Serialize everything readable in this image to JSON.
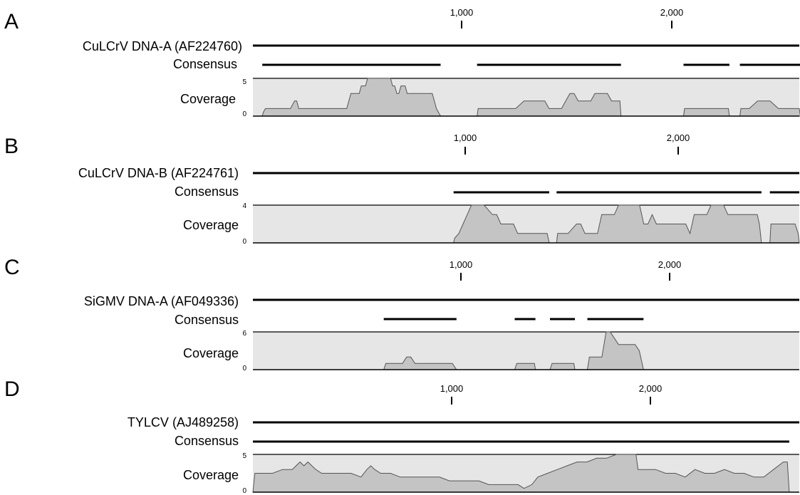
{
  "chart_data": [
    {
      "type": "area",
      "panel": "A",
      "reference": "CuLCrV DNA-A (AF224760)",
      "consensus_label": "Consensus",
      "coverage_label": "Coverage",
      "genome_length": 2620,
      "x_ticks": [
        1000,
        2000
      ],
      "x_tick_labels": [
        "1,000",
        "2,000"
      ],
      "ylim": [
        0,
        5
      ],
      "y_tick_labels": [
        "5",
        "0"
      ],
      "consensus_segments": [
        [
          45,
          900
        ],
        [
          1075,
          1765
        ],
        [
          2065,
          2285
        ],
        [
          2335,
          2625
        ]
      ],
      "coverage": [
        {
          "x": [
            45,
            50,
            60,
            70,
            80,
            90,
            100,
            110,
            120,
            130,
            140,
            150,
            160,
            170,
            180,
            190,
            200,
            210,
            220,
            230,
            240,
            250,
            260,
            270,
            280,
            290,
            300,
            310,
            320,
            330,
            340,
            350,
            360,
            370,
            380,
            390,
            400,
            410,
            420,
            430,
            440,
            450,
            460,
            470,
            480,
            490,
            500,
            510,
            520,
            530,
            540,
            550,
            560,
            570,
            580,
            590,
            600,
            610,
            620,
            630,
            640,
            650,
            660,
            670,
            680,
            690,
            700,
            710,
            720,
            730,
            740,
            750,
            760,
            770,
            780,
            790,
            800,
            810,
            820,
            830,
            840,
            850,
            860,
            870,
            880,
            890,
            900
          ],
          "y": [
            0,
            0.5,
            1,
            1,
            1,
            1,
            1,
            1,
            1,
            1,
            1,
            1,
            1,
            1,
            1,
            1.5,
            2,
            2,
            1,
            1,
            1,
            1,
            1,
            1,
            1,
            1,
            1,
            1,
            1,
            1,
            1,
            1,
            1,
            1,
            1,
            1,
            1,
            1,
            1,
            1,
            1,
            1,
            2,
            3,
            3,
            3,
            3,
            3,
            4,
            4,
            4,
            5,
            5,
            5,
            5,
            5,
            5,
            5,
            5,
            5,
            5,
            5,
            5,
            4,
            4,
            3,
            3,
            4,
            4,
            4,
            3,
            3,
            3,
            3,
            3,
            3,
            3,
            3,
            3,
            3,
            3,
            3,
            3,
            2,
            1,
            0.5,
            0
          ]
        },
        {
          "x": [
            1075,
            1080,
            1100,
            1120,
            1140,
            1160,
            1180,
            1200,
            1220,
            1240,
            1260,
            1280,
            1300,
            1320,
            1340,
            1360,
            1380,
            1400,
            1420,
            1440,
            1460,
            1480,
            1500,
            1520,
            1540,
            1560,
            1580,
            1600,
            1620,
            1640,
            1660,
            1680,
            1700,
            1720,
            1740,
            1760,
            1765
          ],
          "y": [
            0,
            1,
            1,
            1,
            1,
            1,
            1,
            1,
            1,
            1,
            1,
            1.5,
            2,
            2,
            2,
            2,
            2,
            2,
            1,
            1,
            1,
            1,
            2,
            3,
            3,
            2,
            2,
            2,
            2,
            3,
            3,
            3,
            3,
            2,
            2,
            2,
            0
          ]
        },
        {
          "x": [
            2065,
            2070,
            2100,
            2140,
            2180,
            2220,
            2260,
            2280,
            2285
          ],
          "y": [
            0,
            1,
            1,
            1,
            1,
            1,
            1,
            1,
            0
          ]
        },
        {
          "x": [
            2335,
            2340,
            2360,
            2380,
            2400,
            2420,
            2440,
            2460,
            2480,
            2500,
            2520,
            2540,
            2560,
            2580,
            2600,
            2620,
            2625
          ],
          "y": [
            0,
            1,
            1,
            1,
            1.5,
            2,
            2,
            2,
            2,
            1.5,
            1,
            1,
            1,
            1,
            1,
            1,
            0
          ]
        }
      ]
    },
    {
      "type": "area",
      "panel": "B",
      "reference": "CuLCrV DNA-B (AF224761)",
      "consensus_label": "Consensus",
      "coverage_label": "Coverage",
      "genome_length": 2600,
      "x_ticks": [
        1000,
        2000
      ],
      "x_tick_labels": [
        "1,000",
        "2,000"
      ],
      "ylim": [
        0,
        4
      ],
      "y_tick_labels": [
        "4",
        "0"
      ],
      "consensus_segments": [
        [
          955,
          1410
        ],
        [
          1445,
          2420
        ],
        [
          2460,
          2600
        ]
      ],
      "coverage": [
        {
          "x": [
            955,
            960,
            980,
            1000,
            1020,
            1040,
            1060,
            1080,
            1100,
            1120,
            1140,
            1160,
            1180,
            1200,
            1220,
            1240,
            1260,
            1280,
            1300,
            1320,
            1340,
            1360,
            1380,
            1400,
            1410
          ],
          "y": [
            0,
            0.5,
            1,
            2,
            3,
            4,
            4,
            4,
            4,
            3.5,
            3,
            3,
            2,
            2,
            2,
            2,
            1,
            1,
            1,
            1,
            1,
            1,
            1,
            1,
            0
          ]
        },
        {
          "x": [
            1445,
            1450,
            1480,
            1500,
            1520,
            1540,
            1560,
            1580,
            1600,
            1620,
            1640,
            1660,
            1680,
            1700,
            1720,
            1740,
            1760,
            1780,
            1800,
            1820,
            1840,
            1860,
            1880,
            1900,
            1920,
            1940,
            1960,
            1980,
            2000,
            2020,
            2040,
            2060,
            2080,
            2100,
            2120,
            2140,
            2160,
            2180,
            2200,
            2220,
            2240,
            2260,
            2280,
            2300,
            2320,
            2340,
            2360,
            2380,
            2400,
            2410,
            2420
          ],
          "y": [
            0,
            1,
            1,
            1,
            1.5,
            2,
            2,
            1,
            1,
            1,
            1,
            3,
            3,
            3,
            3,
            4,
            4,
            4,
            4,
            4,
            4,
            2,
            2,
            3,
            2,
            2,
            2,
            2,
            2,
            2,
            2,
            2,
            1,
            3,
            3,
            3,
            3,
            4,
            4,
            4,
            4,
            3,
            3,
            3,
            3,
            3,
            3,
            3,
            3,
            2,
            0
          ]
        },
        {
          "x": [
            2460,
            2465,
            2480,
            2500,
            2520,
            2540,
            2560,
            2580,
            2595,
            2600
          ],
          "y": [
            0,
            2,
            2,
            2,
            2,
            2,
            2,
            2,
            1,
            0
          ]
        }
      ]
    },
    {
      "type": "area",
      "panel": "C",
      "reference": "SiGMV  DNA-A (AF049336)",
      "consensus_label": "Consensus",
      "coverage_label": "Coverage",
      "genome_length": 2630,
      "x_ticks": [
        1000,
        2000
      ],
      "x_tick_labels": [
        "1,000",
        "2,000"
      ],
      "ylim": [
        0,
        6
      ],
      "y_tick_labels": [
        "6",
        "0"
      ],
      "consensus_segments": [
        [
          630,
          980
        ],
        [
          1260,
          1360
        ],
        [
          1430,
          1550
        ],
        [
          1610,
          1880
        ]
      ],
      "coverage": [
        {
          "x": [
            630,
            640,
            660,
            680,
            700,
            720,
            740,
            760,
            780,
            800,
            820,
            840,
            860,
            880,
            900,
            920,
            940,
            960,
            980
          ],
          "y": [
            0,
            1,
            1,
            1,
            1,
            1,
            2,
            2,
            1,
            1,
            1,
            1,
            1,
            1,
            1,
            1,
            1,
            1,
            0
          ]
        },
        {
          "x": [
            1260,
            1270,
            1300,
            1330,
            1355,
            1360
          ],
          "y": [
            0,
            1,
            1,
            1,
            1,
            0
          ]
        },
        {
          "x": [
            1430,
            1440,
            1470,
            1500,
            1530,
            1545,
            1550
          ],
          "y": [
            0,
            1,
            1,
            1,
            1,
            1,
            0
          ]
        },
        {
          "x": [
            1610,
            1620,
            1640,
            1660,
            1680,
            1700,
            1720,
            1740,
            1760,
            1780,
            1800,
            1820,
            1840,
            1860,
            1880
          ],
          "y": [
            0,
            2,
            2,
            2,
            2,
            6,
            6,
            5,
            4,
            4,
            4,
            4,
            4,
            3,
            0
          ]
        }
      ]
    },
    {
      "type": "area",
      "panel": "D",
      "reference": "TYLCV (AJ489258)",
      "consensus_label": "Consensus",
      "coverage_label": "Coverage",
      "genome_length": 2781,
      "x_ticks": [
        1000,
        2000
      ],
      "x_tick_labels": [
        "1,000",
        "2,000"
      ],
      "ylim": [
        0,
        5
      ],
      "y_tick_labels": [
        "5",
        "0"
      ],
      "consensus_segments": [
        [
          0,
          2730
        ]
      ],
      "coverage": [
        {
          "x": [
            0,
            10,
            50,
            100,
            150,
            200,
            220,
            240,
            260,
            280,
            300,
            320,
            350,
            400,
            450,
            500,
            550,
            580,
            600,
            620,
            650,
            700,
            750,
            800,
            850,
            900,
            950,
            1000,
            1050,
            1100,
            1150,
            1200,
            1250,
            1300,
            1350,
            1380,
            1420,
            1450,
            1500,
            1550,
            1600,
            1650,
            1700,
            1750,
            1800,
            1850,
            1900,
            1950,
            1960,
            2000,
            2050,
            2100,
            2150,
            2200,
            2250,
            2300,
            2350,
            2400,
            2450,
            2500,
            2550,
            2600,
            2650,
            2700,
            2720,
            2730
          ],
          "y": [
            0,
            2.5,
            2.5,
            2.5,
            3,
            3,
            3.5,
            4,
            3.5,
            4,
            3.5,
            3,
            2.5,
            2.5,
            2.5,
            2.5,
            2,
            3,
            3.5,
            3,
            2.5,
            2.5,
            2,
            2,
            2,
            2,
            2,
            1.5,
            1.5,
            1.5,
            1.5,
            1,
            1,
            1,
            1,
            0.5,
            1,
            2,
            2.5,
            3,
            3.5,
            4,
            4,
            4.5,
            4.5,
            5,
            5,
            5,
            3,
            3,
            3,
            2.5,
            2.5,
            2,
            3,
            2.5,
            2.5,
            3,
            2.5,
            2.5,
            2,
            2,
            3,
            4,
            4,
            0
          ]
        }
      ]
    }
  ],
  "colors": {
    "line": "#000000",
    "coverage_panel_bg": "#e6e6e6",
    "coverage_fill": "#c4c4c4",
    "coverage_stroke": "#555555"
  }
}
